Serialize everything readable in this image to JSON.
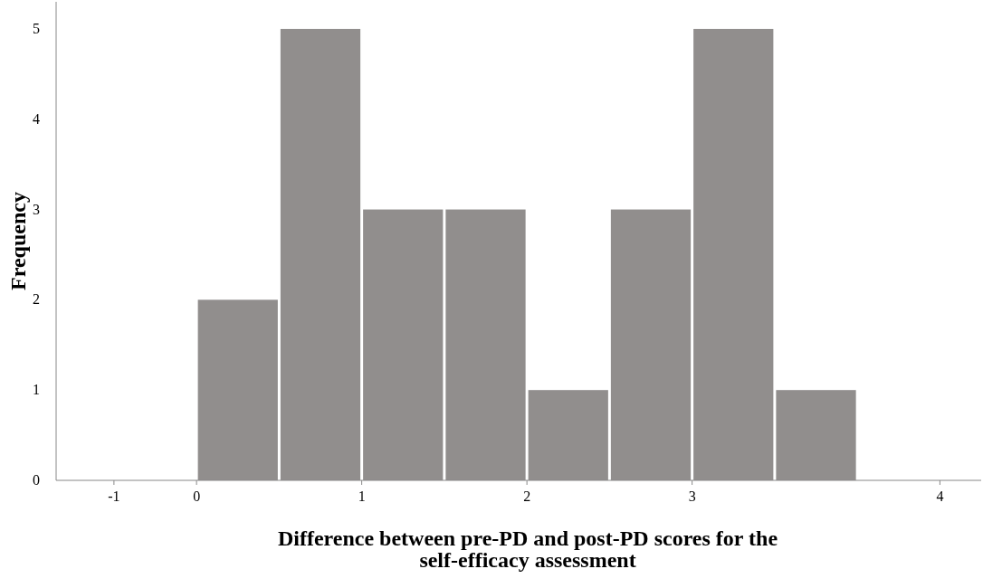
{
  "chart_data": {
    "type": "histogram",
    "xlabel": "Difference between pre-PD and post-PD scores for the self-efficacy assessment",
    "ylabel": "Frequency",
    "bins": [
      0,
      0.5,
      1,
      1.5,
      2,
      2.5,
      3,
      3.5,
      4
    ],
    "values": [
      2,
      5,
      3,
      3,
      1,
      3,
      5,
      1
    ],
    "color": "#918e8d",
    "xlim": [
      -0.85,
      4.75
    ],
    "xticks": [
      {
        "value": -0.5,
        "label": "-1"
      },
      0,
      1,
      2,
      3,
      {
        "value": 4.5,
        "label": "4"
      }
    ],
    "ylim": [
      0,
      5.3
    ],
    "yticks": [
      0,
      1,
      2,
      3,
      4,
      5
    ],
    "grid": false
  }
}
